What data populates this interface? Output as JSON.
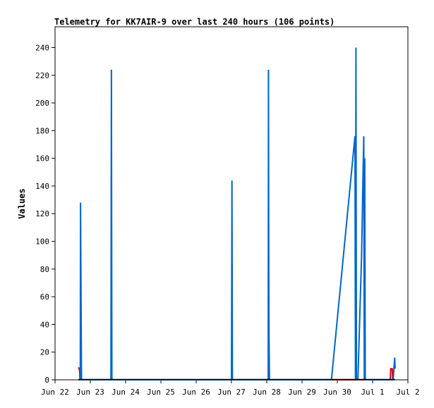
{
  "chart_data": {
    "type": "line",
    "title": "Telemetry for KK7AIR-9 over last 240 hours (106 points)",
    "ylabel": "Values",
    "xlabel": "",
    "ylim": [
      0,
      255
    ],
    "xlim": [
      "2023-06-22T00:00",
      "2023-07-02T00:00"
    ],
    "x_tick_labels": [
      "Jun 22",
      "Jun 23",
      "Jun 24",
      "Jun 25",
      "Jun 26",
      "Jun 27",
      "Jun 28",
      "Jun 29",
      "Jun 30",
      "Jul 1",
      "Jul 2"
    ],
    "y_ticks": [
      0,
      20,
      40,
      60,
      80,
      100,
      120,
      140,
      160,
      180,
      200,
      220,
      240
    ],
    "grid": false,
    "legend": "none",
    "series": [
      {
        "color": "#d00000",
        "points": [
          [
            "2023-06-22T16:00",
            9
          ],
          [
            "2023-06-22T16:20",
            8
          ],
          [
            "2023-06-22T16:40",
            7
          ],
          [
            "2023-06-22T17:00",
            0
          ],
          [
            "2023-06-22T18:00",
            0
          ],
          [
            "2023-07-01T12:00",
            0
          ],
          [
            "2023-07-01T12:20",
            8
          ],
          [
            "2023-07-01T13:20",
            8
          ],
          [
            "2023-07-01T13:40",
            0
          ]
        ]
      },
      {
        "color": "#0066cc",
        "points": [
          [
            "2023-06-22T16:00",
            0
          ],
          [
            "2023-06-22T17:10",
            0
          ],
          [
            "2023-06-22T17:20",
            128
          ],
          [
            "2023-06-22T17:40",
            64
          ],
          [
            "2023-06-22T18:00",
            0
          ],
          [
            "2023-06-23T14:00",
            0
          ],
          [
            "2023-06-23T14:20",
            224
          ],
          [
            "2023-06-23T14:40",
            0
          ],
          [
            "2023-06-27T00:00",
            0
          ],
          [
            "2023-06-27T00:10",
            64
          ],
          [
            "2023-06-27T00:20",
            144
          ],
          [
            "2023-06-27T00:40",
            0
          ],
          [
            "2023-06-28T01:00",
            0
          ],
          [
            "2023-06-28T01:10",
            224
          ],
          [
            "2023-06-28T01:20",
            108
          ],
          [
            "2023-06-28T01:30",
            36
          ],
          [
            "2023-06-28T01:50",
            0
          ],
          [
            "2023-06-29T20:00",
            0
          ],
          [
            "2023-06-30T12:00",
            176
          ],
          [
            "2023-06-30T12:20",
            0
          ],
          [
            "2023-06-30T12:40",
            240
          ],
          [
            "2023-06-30T13:00",
            0
          ],
          [
            "2023-06-30T14:00",
            0
          ],
          [
            "2023-06-30T16:30",
            90
          ],
          [
            "2023-06-30T17:30",
            150
          ],
          [
            "2023-06-30T18:00",
            176
          ],
          [
            "2023-06-30T18:20",
            0
          ],
          [
            "2023-06-30T18:40",
            160
          ],
          [
            "2023-06-30T19:00",
            0
          ],
          [
            "2023-07-01T14:00",
            0
          ],
          [
            "2023-07-01T15:00",
            16
          ],
          [
            "2023-07-01T15:20",
            8
          ]
        ]
      }
    ]
  }
}
